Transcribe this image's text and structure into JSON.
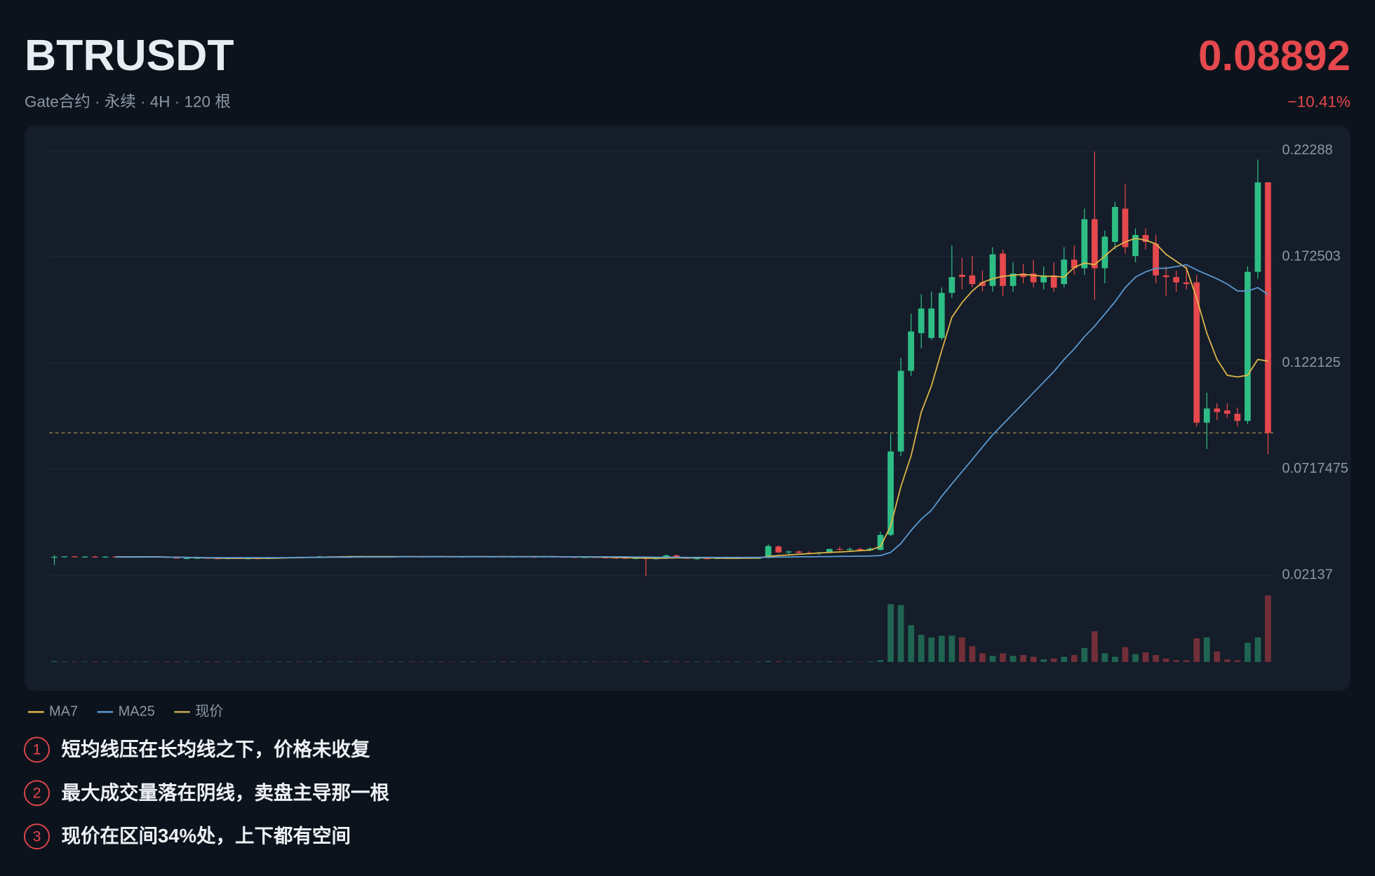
{
  "header": {
    "symbol": "BTRUSDT",
    "subtitle": "Gate合约 · 永续 · 4H · 120 根",
    "change": "−10.41%"
  },
  "chart_data": {
    "type": "candlestick",
    "ylim": [
      0.01637,
      0.2299
    ],
    "yticks": [
      0.22288,
      0.172503,
      0.122125,
      0.0717475,
      0.02137
    ],
    "grid": true,
    "up_color": "#2ebd85",
    "down_color": "#e5484d",
    "price_line": {
      "name": "现价",
      "value": 0.08892,
      "color": "#c9a85a"
    },
    "candles": [
      [
        0.0298,
        0.0309,
        0.0262,
        0.0301
      ],
      [
        0.0301,
        0.0304,
        0.0297,
        0.0303
      ],
      [
        0.0303,
        0.0305,
        0.0298,
        0.03
      ],
      [
        0.03,
        0.0304,
        0.0297,
        0.0302
      ],
      [
        0.0302,
        0.0306,
        0.0299,
        0.0299
      ],
      [
        0.0299,
        0.0303,
        0.0296,
        0.0302
      ],
      [
        0.0302,
        0.0305,
        0.0298,
        0.0301
      ],
      [
        0.0301,
        0.0304,
        0.0298,
        0.03
      ],
      [
        0.03,
        0.0303,
        0.0297,
        0.0301
      ],
      [
        0.0301,
        0.0304,
        0.0298,
        0.0302
      ],
      [
        0.0302,
        0.0305,
        0.0299,
        0.03
      ],
      [
        0.03,
        0.0303,
        0.0296,
        0.0299
      ],
      [
        0.0299,
        0.0301,
        0.0292,
        0.0293
      ],
      [
        0.0293,
        0.0297,
        0.0289,
        0.0295
      ],
      [
        0.0295,
        0.0298,
        0.0292,
        0.0296
      ],
      [
        0.0296,
        0.0299,
        0.0293,
        0.0294
      ],
      [
        0.0294,
        0.0297,
        0.029,
        0.0292
      ],
      [
        0.0292,
        0.0296,
        0.0289,
        0.0295
      ],
      [
        0.0295,
        0.0297,
        0.029,
        0.0291
      ],
      [
        0.0291,
        0.0295,
        0.0289,
        0.0294
      ],
      [
        0.0294,
        0.0297,
        0.0291,
        0.0293
      ],
      [
        0.0293,
        0.0296,
        0.029,
        0.0295
      ],
      [
        0.0295,
        0.0299,
        0.0292,
        0.0297
      ],
      [
        0.0297,
        0.0301,
        0.0294,
        0.0299
      ],
      [
        0.0299,
        0.0302,
        0.0296,
        0.0298
      ],
      [
        0.0298,
        0.0302,
        0.0295,
        0.0301
      ],
      [
        0.0301,
        0.0305,
        0.0298,
        0.0303
      ],
      [
        0.0303,
        0.0306,
        0.0299,
        0.0301
      ],
      [
        0.0301,
        0.0304,
        0.0298,
        0.0302
      ],
      [
        0.0302,
        0.0306,
        0.0299,
        0.0304
      ],
      [
        0.0304,
        0.0307,
        0.03,
        0.0302
      ],
      [
        0.0302,
        0.0305,
        0.0298,
        0.0303
      ],
      [
        0.0303,
        0.0306,
        0.0299,
        0.0301
      ],
      [
        0.0301,
        0.0304,
        0.0297,
        0.0302
      ],
      [
        0.0302,
        0.0305,
        0.0299,
        0.0303
      ],
      [
        0.0303,
        0.0306,
        0.03,
        0.0302
      ],
      [
        0.0302,
        0.0305,
        0.0298,
        0.0301
      ],
      [
        0.0301,
        0.0304,
        0.0298,
        0.0303
      ],
      [
        0.0303,
        0.0307,
        0.03,
        0.0302
      ],
      [
        0.0302,
        0.0305,
        0.0299,
        0.0301
      ],
      [
        0.0301,
        0.0304,
        0.0297,
        0.0302
      ],
      [
        0.0302,
        0.0305,
        0.0299,
        0.0303
      ],
      [
        0.0303,
        0.0306,
        0.03,
        0.0301
      ],
      [
        0.0301,
        0.0304,
        0.0298,
        0.0302
      ],
      [
        0.0302,
        0.0305,
        0.0299,
        0.03
      ],
      [
        0.03,
        0.0303,
        0.0297,
        0.0302
      ],
      [
        0.0302,
        0.0305,
        0.0299,
        0.0301
      ],
      [
        0.0301,
        0.0304,
        0.0298,
        0.03
      ],
      [
        0.03,
        0.0303,
        0.0297,
        0.0302
      ],
      [
        0.0302,
        0.0304,
        0.0298,
        0.0301
      ],
      [
        0.0301,
        0.0303,
        0.0297,
        0.03
      ],
      [
        0.03,
        0.0303,
        0.0296,
        0.0299
      ],
      [
        0.0299,
        0.0302,
        0.0296,
        0.03
      ],
      [
        0.03,
        0.0302,
        0.0295,
        0.0298
      ],
      [
        0.0298,
        0.0301,
        0.0294,
        0.0297
      ],
      [
        0.0297,
        0.03,
        0.0293,
        0.0296
      ],
      [
        0.0296,
        0.0299,
        0.0291,
        0.0293
      ],
      [
        0.0293,
        0.0297,
        0.029,
        0.0295
      ],
      [
        0.0295,
        0.0298,
        0.021,
        0.0292
      ],
      [
        0.0292,
        0.0296,
        0.0289,
        0.0294
      ],
      [
        0.0294,
        0.0312,
        0.0292,
        0.0308
      ],
      [
        0.0308,
        0.0312,
        0.0294,
        0.0297
      ],
      [
        0.0297,
        0.03,
        0.029,
        0.0292
      ],
      [
        0.0292,
        0.0296,
        0.0288,
        0.0294
      ],
      [
        0.0294,
        0.0297,
        0.0291,
        0.0293
      ],
      [
        0.0293,
        0.0296,
        0.029,
        0.0295
      ],
      [
        0.0295,
        0.0298,
        0.0292,
        0.0294
      ],
      [
        0.0294,
        0.0297,
        0.0291,
        0.0296
      ],
      [
        0.0296,
        0.0299,
        0.0293,
        0.0295
      ],
      [
        0.0295,
        0.0298,
        0.0292,
        0.0296
      ],
      [
        0.0296,
        0.036,
        0.0293,
        0.0352
      ],
      [
        0.035,
        0.0356,
        0.0318,
        0.0322
      ],
      [
        0.0322,
        0.033,
        0.031,
        0.0326
      ],
      [
        0.0326,
        0.0331,
        0.0316,
        0.032
      ],
      [
        0.032,
        0.0328,
        0.0314,
        0.0318
      ],
      [
        0.0318,
        0.0325,
        0.031,
        0.0322
      ],
      [
        0.0322,
        0.034,
        0.0318,
        0.0338
      ],
      [
        0.0338,
        0.0348,
        0.033,
        0.0334
      ],
      [
        0.0334,
        0.0346,
        0.0326,
        0.0338
      ],
      [
        0.0338,
        0.0344,
        0.0328,
        0.0332
      ],
      [
        0.0332,
        0.0346,
        0.0328,
        0.034
      ],
      [
        0.0334,
        0.042,
        0.033,
        0.0405
      ],
      [
        0.0405,
        0.0885,
        0.0398,
        0.0801
      ],
      [
        0.0801,
        0.1246,
        0.078,
        0.1184
      ],
      [
        0.1184,
        0.1455,
        0.116,
        0.1371
      ],
      [
        0.1363,
        0.1547,
        0.129,
        0.148
      ],
      [
        0.134,
        0.156,
        0.133,
        0.148
      ],
      [
        0.134,
        0.158,
        0.133,
        0.1554
      ],
      [
        0.1554,
        0.1779,
        0.153,
        0.1629
      ],
      [
        0.164,
        0.172,
        0.157,
        0.163
      ],
      [
        0.1637,
        0.173,
        0.158,
        0.1596
      ],
      [
        0.1604,
        0.166,
        0.156,
        0.1587
      ],
      [
        0.1587,
        0.1771,
        0.156,
        0.1737
      ],
      [
        0.1741,
        0.176,
        0.154,
        0.1587
      ],
      [
        0.1587,
        0.17,
        0.156,
        0.1646
      ],
      [
        0.1646,
        0.169,
        0.16,
        0.1629
      ],
      [
        0.1646,
        0.171,
        0.158,
        0.1604
      ],
      [
        0.1604,
        0.168,
        0.157,
        0.1637
      ],
      [
        0.1637,
        0.17,
        0.156,
        0.1579
      ],
      [
        0.1596,
        0.1771,
        0.158,
        0.1712
      ],
      [
        0.1712,
        0.178,
        0.164,
        0.1671
      ],
      [
        0.1671,
        0.1954,
        0.164,
        0.1904
      ],
      [
        0.1904,
        0.2225,
        0.1521,
        0.1671
      ],
      [
        0.1671,
        0.185,
        0.16,
        0.1821
      ],
      [
        0.1796,
        0.1987,
        0.176,
        0.1962
      ],
      [
        0.1954,
        0.2071,
        0.174,
        0.1771
      ],
      [
        0.1729,
        0.186,
        0.17,
        0.1829
      ],
      [
        0.1829,
        0.186,
        0.176,
        0.1796
      ],
      [
        0.1787,
        0.183,
        0.16,
        0.1637
      ],
      [
        0.1637,
        0.168,
        0.154,
        0.1629
      ],
      [
        0.1629,
        0.166,
        0.156,
        0.1604
      ],
      [
        0.1604,
        0.168,
        0.157,
        0.1596
      ],
      [
        0.1604,
        0.164,
        0.092,
        0.0938
      ],
      [
        0.0938,
        0.108,
        0.0813,
        0.1005
      ],
      [
        0.1005,
        0.103,
        0.095,
        0.0988
      ],
      [
        0.0996,
        0.103,
        0.096,
        0.098
      ],
      [
        0.098,
        0.101,
        0.092,
        0.0946
      ],
      [
        0.0946,
        0.168,
        0.093,
        0.1654
      ],
      [
        0.1654,
        0.2187,
        0.162,
        0.2079
      ],
      [
        0.2079,
        0.2079,
        0.0788,
        0.08892
      ]
    ],
    "volume": [
      1.0,
      0.5,
      0.6,
      0.5,
      0.7,
      0.5,
      0.6,
      0.5,
      0.5,
      0.6,
      0.5,
      0.6,
      0.8,
      0.6,
      0.5,
      0.6,
      0.7,
      0.5,
      0.6,
      0.5,
      0.5,
      0.6,
      0.5,
      0.5,
      0.6,
      0.5,
      0.6,
      0.5,
      0.5,
      0.6,
      0.5,
      0.5,
      0.6,
      0.5,
      0.5,
      0.6,
      0.5,
      0.5,
      0.6,
      0.5,
      0.5,
      0.6,
      0.5,
      0.5,
      0.6,
      0.5,
      0.5,
      0.6,
      0.5,
      0.5,
      0.6,
      0.5,
      0.5,
      0.6,
      0.5,
      0.5,
      0.6,
      0.5,
      1.0,
      0.5,
      0.8,
      0.7,
      0.6,
      0.5,
      0.6,
      0.5,
      0.5,
      0.6,
      0.5,
      0.5,
      1.2,
      0.9,
      0.6,
      0.6,
      0.5,
      0.6,
      0.8,
      0.6,
      0.6,
      0.5,
      0.7,
      2,
      66,
      65,
      42,
      31,
      28,
      30,
      30,
      28,
      18,
      10,
      7,
      10,
      7,
      8,
      6,
      3,
      4,
      6,
      8,
      16,
      35,
      10,
      6,
      17,
      9,
      11,
      8,
      4,
      2,
      2,
      27,
      28,
      12,
      3,
      2,
      22,
      28,
      76
    ],
    "series": [
      {
        "name": "MA7",
        "color": "#e0b84a",
        "values": [
          null,
          null,
          null,
          null,
          null,
          null,
          0.0301,
          0.0301,
          0.0301,
          0.0301,
          0.0301,
          0.03,
          0.0299,
          0.0298,
          0.0297,
          0.0296,
          0.0295,
          0.0294,
          0.0294,
          0.0294,
          0.0294,
          0.0294,
          0.0295,
          0.0296,
          0.0297,
          0.0298,
          0.0299,
          0.03,
          0.0301,
          0.0302,
          0.0302,
          0.0302,
          0.0302,
          0.0302,
          0.0302,
          0.0302,
          0.0302,
          0.0302,
          0.0302,
          0.0302,
          0.0302,
          0.0302,
          0.0302,
          0.0302,
          0.0302,
          0.0302,
          0.0302,
          0.0302,
          0.0302,
          0.0302,
          0.0301,
          0.0301,
          0.03,
          0.03,
          0.0299,
          0.0298,
          0.0297,
          0.0296,
          0.0295,
          0.0294,
          0.0295,
          0.0296,
          0.0296,
          0.0296,
          0.0296,
          0.0295,
          0.0294,
          0.0294,
          0.0295,
          0.0295,
          0.0303,
          0.0307,
          0.031,
          0.0313,
          0.0316,
          0.0319,
          0.0322,
          0.0324,
          0.0327,
          0.033,
          0.0333,
          0.035,
          0.0447,
          0.0634,
          0.078,
          0.0988,
          0.1113,
          0.1279,
          0.1438,
          0.1508,
          0.1563,
          0.1604,
          0.1621,
          0.1633,
          0.1637,
          0.1642,
          0.1637,
          0.1633,
          0.1633,
          0.1629,
          0.1675,
          0.1696,
          0.1688,
          0.1729,
          0.1771,
          0.1796,
          0.1813,
          0.1804,
          0.1787,
          0.1737,
          0.1704,
          0.1671,
          0.1529,
          0.1363,
          0.1238,
          0.1163,
          0.1155,
          0.1163,
          0.1238,
          0.123
        ]
      },
      {
        "name": "MA25",
        "color": "#5b9bd5",
        "values": [
          null,
          null,
          null,
          null,
          null,
          null,
          0.03,
          0.03,
          0.03,
          0.03,
          0.03,
          0.03,
          0.0299,
          0.0298,
          0.0298,
          0.0297,
          0.0297,
          0.0297,
          0.0297,
          0.0297,
          0.0297,
          0.0297,
          0.0297,
          0.0297,
          0.0298,
          0.0298,
          0.0298,
          0.0299,
          0.0299,
          0.0299,
          0.03,
          0.03,
          0.03,
          0.03,
          0.0301,
          0.0301,
          0.0301,
          0.0301,
          0.0301,
          0.0301,
          0.0301,
          0.0301,
          0.0301,
          0.0301,
          0.0301,
          0.0301,
          0.0301,
          0.0301,
          0.0301,
          0.0301,
          0.0301,
          0.0301,
          0.0301,
          0.0301,
          0.0301,
          0.0301,
          0.0301,
          0.03,
          0.03,
          0.0299,
          0.0299,
          0.0299,
          0.0298,
          0.0298,
          0.0298,
          0.0298,
          0.0298,
          0.0298,
          0.0298,
          0.0298,
          0.0299,
          0.03,
          0.03,
          0.0301,
          0.0301,
          0.0302,
          0.0302,
          0.0303,
          0.0303,
          0.0304,
          0.0305,
          0.0307,
          0.0322,
          0.0364,
          0.0426,
          0.048,
          0.0522,
          0.0588,
          0.0647,
          0.0705,
          0.0763,
          0.0822,
          0.088,
          0.093,
          0.098,
          0.103,
          0.108,
          0.113,
          0.118,
          0.1238,
          0.1288,
          0.1346,
          0.1396,
          0.1454,
          0.1512,
          0.1579,
          0.1629,
          0.1654,
          0.1671,
          0.1671,
          0.1679,
          0.1688,
          0.1663,
          0.1642,
          0.1621,
          0.1596,
          0.1563,
          0.1563,
          0.1579,
          0.1546
        ]
      }
    ]
  },
  "notes": [
    {
      "num": "1",
      "text": "短均线压在长均线之下，价格未收复"
    },
    {
      "num": "2",
      "text": "最大成交量落在阴线，卖盘主导那一根"
    },
    {
      "num": "3",
      "text": "现价在区间34%处，上下都有空间"
    }
  ]
}
